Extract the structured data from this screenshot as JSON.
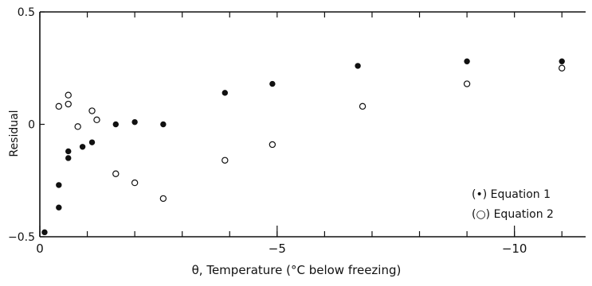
{
  "chart_data": {
    "type": "scatter",
    "title": "",
    "xlabel": "θ, Temperature (°C below freezing)",
    "ylabel": "Residual",
    "xlim": [
      0,
      -11.5
    ],
    "ylim": [
      -0.5,
      0.5
    ],
    "x_ticks": [
      {
        "value": 0,
        "label": "0"
      },
      {
        "value": -5,
        "label": "−5"
      },
      {
        "value": -10,
        "label": "−10"
      }
    ],
    "y_ticks": [
      {
        "value": 0.5,
        "label": "0.5"
      },
      {
        "value": 0,
        "label": "0"
      },
      {
        "value": -0.5,
        "label": "−0.5"
      }
    ],
    "grid": false,
    "legend_position": "bottom-right",
    "series": [
      {
        "name": "(•) Equation 1",
        "marker": "filled-circle",
        "x": [
          -0.1,
          -0.4,
          -0.4,
          -0.6,
          -0.6,
          -0.9,
          -1.1,
          -1.6,
          -2.0,
          -2.6,
          -3.9,
          -4.9,
          -6.7,
          -9.0,
          -11.0
        ],
        "y": [
          -0.48,
          -0.37,
          -0.27,
          -0.12,
          -0.15,
          -0.1,
          -0.08,
          0.0,
          0.01,
          0.0,
          0.14,
          0.18,
          0.26,
          0.28,
          0.28
        ]
      },
      {
        "name": "(○) Equation 2",
        "marker": "open-circle",
        "x": [
          -0.4,
          -0.6,
          -0.6,
          -0.8,
          -1.1,
          -1.2,
          -1.6,
          -2.0,
          -2.6,
          -3.9,
          -4.9,
          -6.8,
          -9.0,
          -11.0
        ],
        "y": [
          0.08,
          0.13,
          0.09,
          -0.01,
          0.06,
          0.02,
          -0.22,
          -0.26,
          -0.33,
          -0.16,
          -0.09,
          0.08,
          0.18,
          0.25
        ]
      }
    ],
    "legend": [
      {
        "marker": "filled",
        "label": "(•) Equation 1"
      },
      {
        "marker": "open",
        "label": "(○) Equation 2"
      }
    ]
  }
}
